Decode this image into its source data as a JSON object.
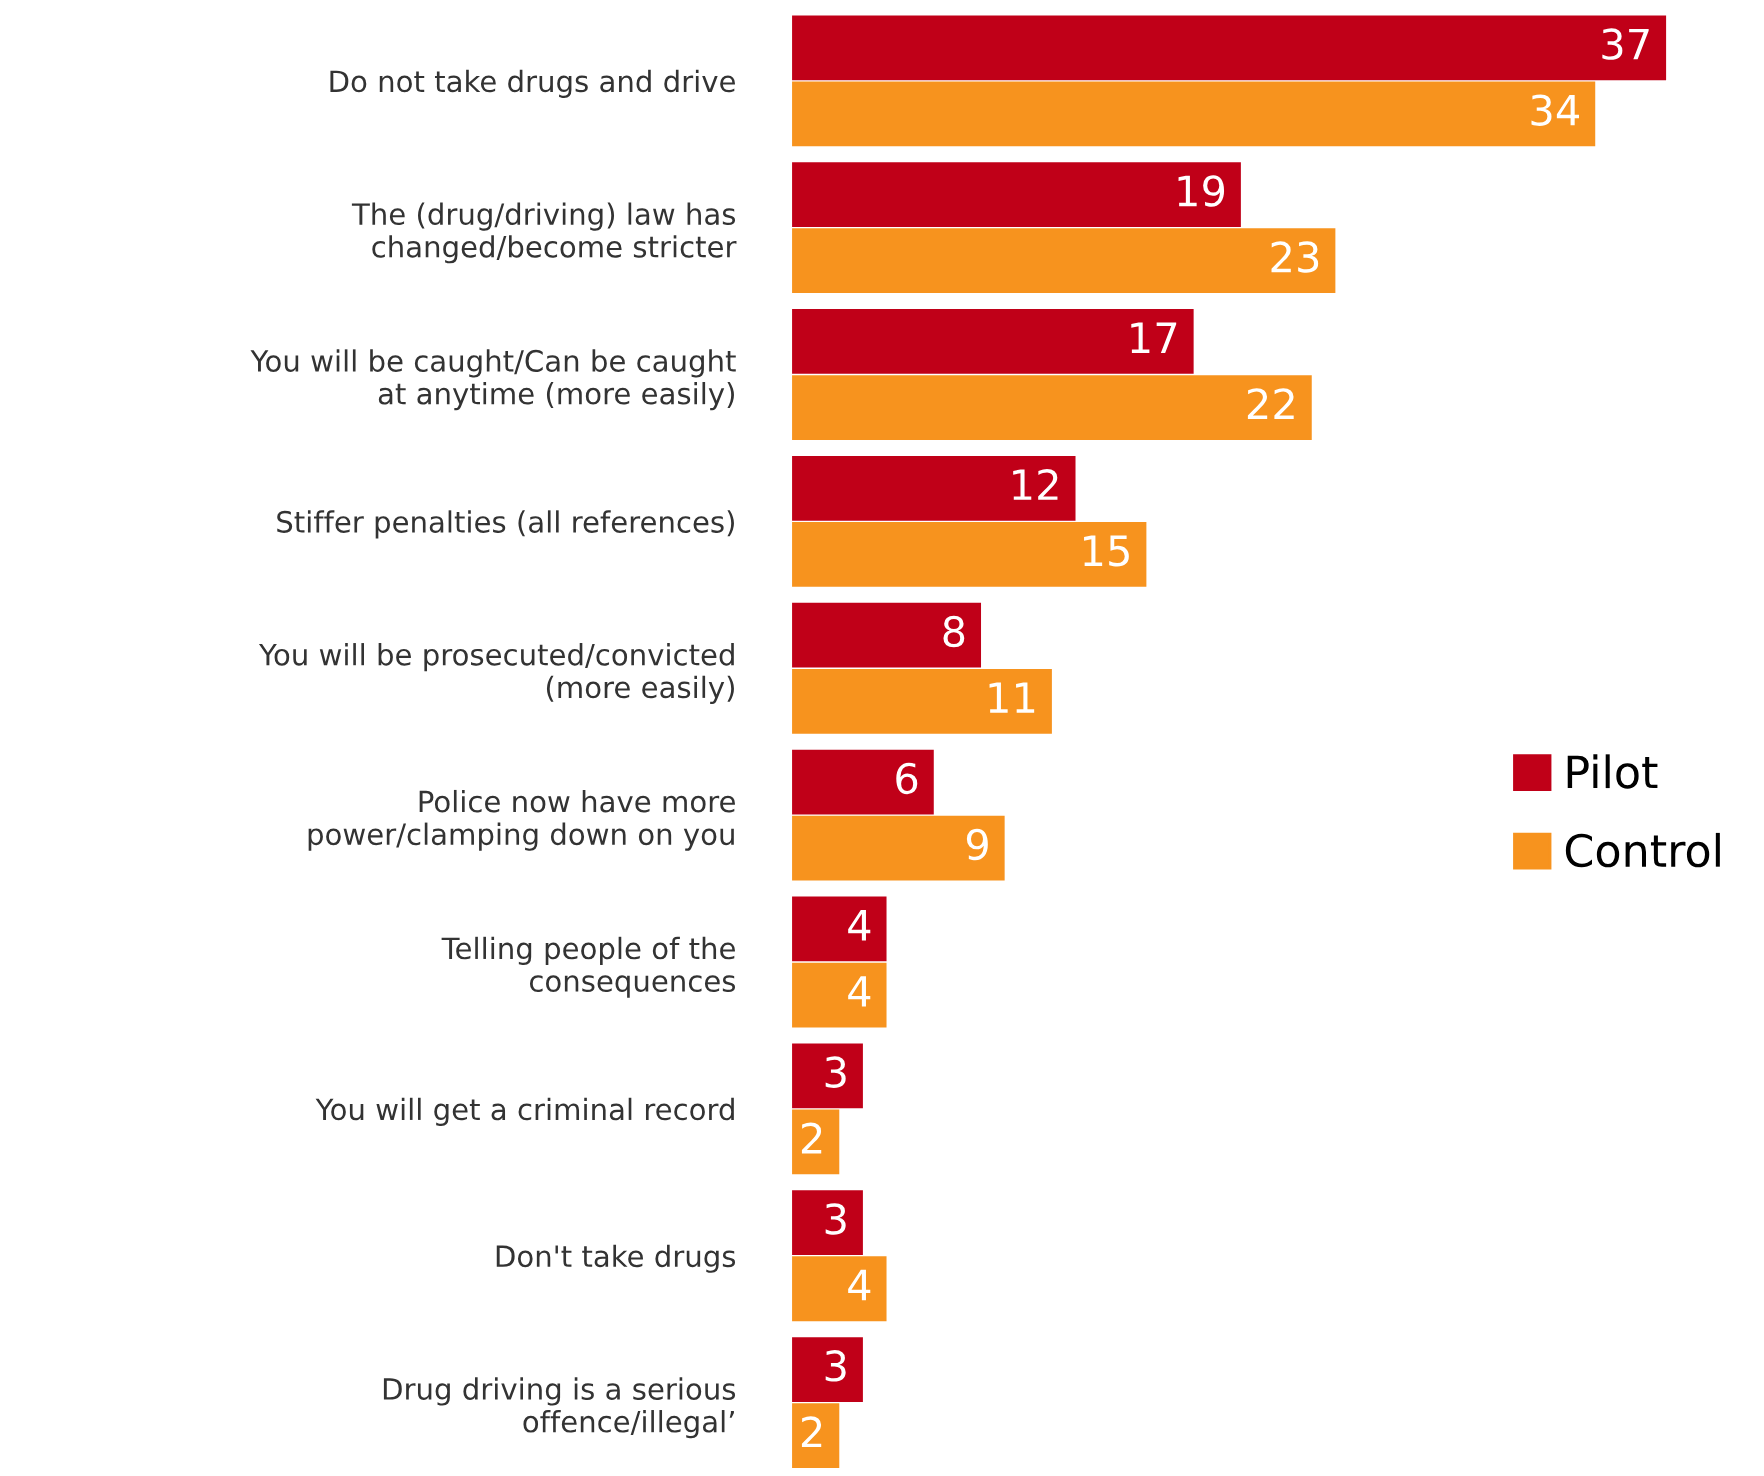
{
  "chart_data": {
    "type": "bar",
    "orientation": "horizontal",
    "data_labels": true,
    "legend": "right",
    "grid": false,
    "categories": [
      "Do not take drugs and drive",
      "The (drug/driving) law has\nchanged/become stricter",
      "You will be caught/Can be caught\nat anytime (more easily)",
      "Stiffer penalties (all references)",
      "You will be prosecuted/convicted\n(more easily)",
      "Police now have more\npower/clamping down on you",
      "Telling people of the\nconsequences",
      "You will get a criminal record",
      "Don't take drugs",
      "Drug driving is a serious\noffence/illegal’"
    ],
    "series": [
      {
        "name": "Pilot",
        "color": "#c00018",
        "values": [
          37,
          19,
          17,
          12,
          8,
          6,
          4,
          3,
          3,
          3
        ]
      },
      {
        "name": "Control",
        "color": "#f7931e",
        "values": [
          34,
          23,
          22,
          15,
          11,
          9,
          4,
          2,
          4,
          2
        ]
      }
    ]
  }
}
